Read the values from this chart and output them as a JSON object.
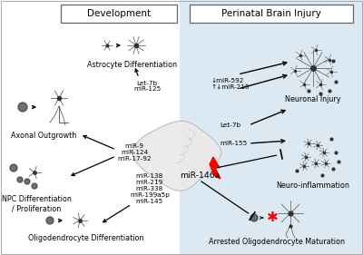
{
  "bg_left": "#ffffff",
  "bg_right": "#dce9f2",
  "title_dev": "Development",
  "title_pbi": "Perinatal Brain Injury",
  "font_size_title": 7.5,
  "font_size_label": 5.8,
  "font_size_mirna": 5.2,
  "labels": {
    "astrocyte_diff": "Astrocyte Differentiation",
    "axonal_outgrowth": "Axonal Outgrowth",
    "npc_diff": "NPC Differentiation\n/ Proliferation",
    "oligo_diff": "Oligodendrocyte Differentiation",
    "let7b_mir125": "Let-7b\nmiR-125",
    "mir9_124_1792": "miR-9\nmiR-124\nmiR-17-92",
    "mir138_group": "miR-138\nmiR-219\nmiR-338\nmiR-199a5p\nmiR-145",
    "mir592_210": "↓miR-592\n↑↓miR-210",
    "let7b_right": "Let-7b",
    "mir155": "miR-155",
    "mir146a": "miR-146a",
    "neuronal_injury": "Neuronal Injury",
    "neuro_inflam": "Neuro-inflammation",
    "arrested_oligo": "Arrested Oligodendrocyte Maturation"
  }
}
